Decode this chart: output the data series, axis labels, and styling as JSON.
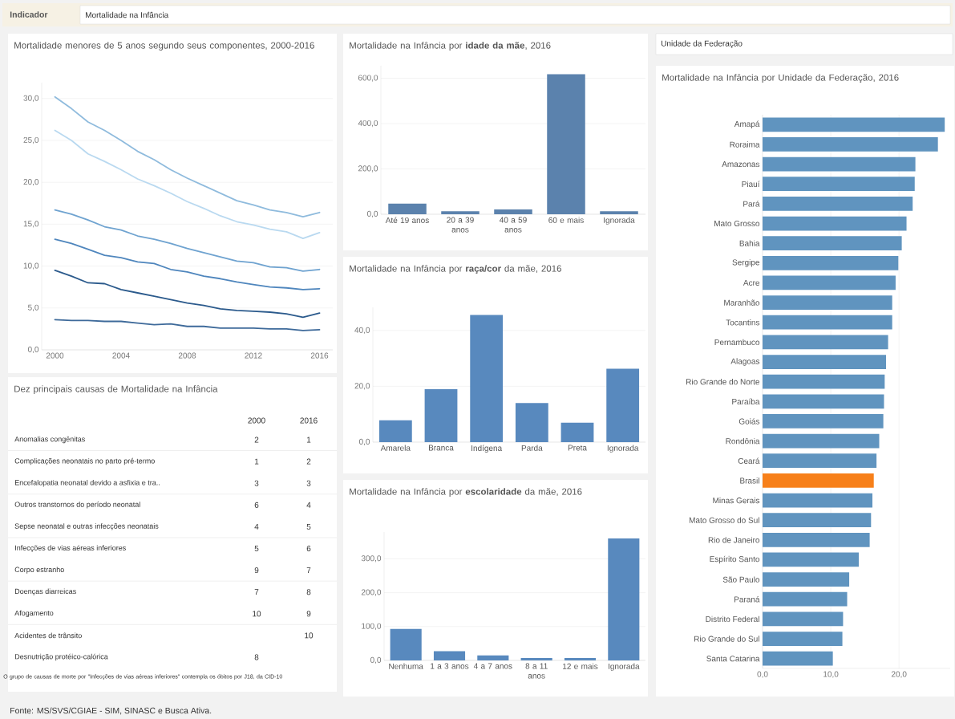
{
  "chart_data": [
    {
      "type": "other",
      "title": "Indicador",
      "annotations": [
        "Mortalidade na Infância",
        "Unidade da Federação",
        "Fonte: MS/SVS/CGIAE - SIM, SINASC e Busca Ativa."
      ]
    },
    {
      "type": "line",
      "title": "Mortalidade menores de 5 anos segundo seus componentes, 2000-2016",
      "x": [
        2000,
        2001,
        2002,
        2003,
        2004,
        2005,
        2006,
        2007,
        2008,
        2009,
        2010,
        2011,
        2012,
        2013,
        2014,
        2015,
        2016
      ],
      "series": [
        {
          "color": "#8fbbdd",
          "values": [
            30.2,
            28.8,
            27.2,
            26.2,
            25.0,
            23.7,
            22.7,
            21.5,
            20.5,
            19.6,
            18.7,
            17.8,
            17.3,
            16.7,
            16.4,
            15.9,
            16.4
          ]
        },
        {
          "color": "#b9d9f0",
          "values": [
            26.2,
            25.0,
            23.4,
            22.5,
            21.5,
            20.4,
            19.6,
            18.7,
            17.7,
            16.9,
            16.0,
            15.3,
            14.9,
            14.4,
            14.1,
            13.3,
            14.0
          ]
        },
        {
          "color": "#6fa3d0",
          "values": [
            16.7,
            16.2,
            15.5,
            14.7,
            14.3,
            13.6,
            13.2,
            12.7,
            12.1,
            11.6,
            11.1,
            10.6,
            10.4,
            9.9,
            9.8,
            9.4,
            9.6
          ]
        },
        {
          "color": "#4f86bd",
          "values": [
            13.2,
            12.7,
            12.0,
            11.3,
            11.0,
            10.5,
            10.3,
            9.6,
            9.3,
            8.8,
            8.5,
            8.1,
            7.8,
            7.5,
            7.4,
            7.2,
            7.3
          ]
        },
        {
          "color": "#2b5a8c",
          "values": [
            9.5,
            8.8,
            8.0,
            7.9,
            7.2,
            6.8,
            6.4,
            6.0,
            5.6,
            5.3,
            4.9,
            4.7,
            4.6,
            4.5,
            4.3,
            3.9,
            4.4
          ]
        },
        {
          "color": "#3e6a9a",
          "values": [
            3.6,
            3.5,
            3.5,
            3.4,
            3.4,
            3.2,
            3.0,
            3.1,
            2.8,
            2.8,
            2.6,
            2.6,
            2.6,
            2.5,
            2.5,
            2.3,
            2.4
          ]
        }
      ],
      "xlim": [
        1999.2,
        2016.8
      ],
      "ylim": [
        0,
        31.9
      ],
      "xticks": [
        2000,
        2004,
        2008,
        2012,
        2016
      ],
      "yticks": [
        {
          "value": 0,
          "label": "0,0"
        },
        {
          "value": 5,
          "label": "5,0"
        },
        {
          "value": 10,
          "label": "10,0"
        },
        {
          "value": 15,
          "label": "15,0"
        },
        {
          "value": 20,
          "label": "20,0"
        },
        {
          "value": 25,
          "label": "25,0"
        },
        {
          "value": 30,
          "label": "30,0"
        }
      ],
      "grid": "y"
    },
    {
      "type": "other",
      "title": "Dez principais causas de Mortalidade na Infância",
      "categories": [
        "Anomalias congênitas",
        "Complicações neonatais no parto pré-termo",
        "Encefalopatia neonatal devido a asfixia e tra..",
        "Outros transtornos do período neonatal",
        "Sepse neonatal e outras infecções neonatais",
        "Infecções de vias aéreas inferiores",
        "Corpo estranho",
        "Doenças diarreicas",
        "Afogamento",
        "Acidentes de trânsito",
        "Desnutrição protéico-calórica"
      ],
      "series": [
        {
          "name": "2000",
          "values": [
            2,
            1,
            3,
            6,
            4,
            5,
            9,
            7,
            10,
            null,
            8
          ],
          "value_labels": [
            "2",
            "1",
            "3",
            "6",
            "4",
            "5",
            "9",
            "7",
            "10",
            null,
            "8"
          ]
        },
        {
          "name": "2016",
          "values": [
            1,
            2,
            3,
            4,
            5,
            6,
            7,
            8,
            9,
            10,
            null
          ],
          "value_labels": [
            "1",
            "2",
            "3",
            "4",
            "5",
            "6",
            "7",
            "8",
            "9",
            "10",
            null
          ]
        }
      ],
      "annotations": [
        "O grupo de causas de morte por \"Infecções de vias aéreas inferiores\" contempla os óbitos por J18, da CID-10"
      ]
    },
    {
      "type": "bar",
      "title": "Mortalidade na Infância por **idade da mãe**, 2016",
      "categories": [
        "Até 19 anos",
        "20 a 39 anos",
        "40 a 59 anos",
        "60 e mais",
        "Ignorada"
      ],
      "values": [
        47,
        13,
        21,
        618,
        13
      ],
      "color": "#5b82ad",
      "ylim": [
        0,
        655
      ],
      "yticks": [
        {
          "value": 0,
          "label": "0,0"
        },
        {
          "value": 200,
          "label": "200,0"
        },
        {
          "value": 400,
          "label": "400,0"
        },
        {
          "value": 600,
          "label": "600,0"
        }
      ],
      "grid": "y"
    },
    {
      "type": "bar",
      "title": "Mortalidade na Infância por **raça/cor** da mãe, 2016",
      "categories": [
        "Amarela",
        "Branca",
        "Indígena",
        "Parda",
        "Preta",
        "Ignorada"
      ],
      "values": [
        7.8,
        19.0,
        45.6,
        14.0,
        7.0,
        26.3
      ],
      "color": "#5889be",
      "ylim": [
        0,
        48.3
      ],
      "yticks": [
        {
          "value": 0,
          "label": "0,0"
        },
        {
          "value": 20,
          "label": "20,0"
        },
        {
          "value": 40,
          "label": "40,0"
        }
      ],
      "grid": "y"
    },
    {
      "type": "bar",
      "title": "Mortalidade na Infância por **escolaridade** da mãe, 2016",
      "categories": [
        "Nenhuma",
        "1 a 3 anos",
        "4 a 7 anos",
        "8 a 11 anos",
        "12 e mais",
        "Ignorada"
      ],
      "values": [
        93,
        27,
        15,
        7,
        7,
        360
      ],
      "color": "#5889be",
      "ylim": [
        0,
        379
      ],
      "yticks": [
        {
          "value": 0,
          "label": "0,0"
        },
        {
          "value": 100,
          "label": "100,0"
        },
        {
          "value": 200,
          "label": "200,0"
        },
        {
          "value": 300,
          "label": "300,0"
        }
      ],
      "grid": "y"
    },
    {
      "type": "bar",
      "orientation": "horizontal",
      "title": "Mortalidade na Infância por Unidade da Federação, 2016",
      "categories": [
        "Amapá",
        "Roraima",
        "Amazonas",
        "Piauí",
        "Pará",
        "Mato Grosso",
        "Bahia",
        "Sergipe",
        "Acre",
        "Maranhão",
        "Tocantins",
        "Pernambuco",
        "Alagoas",
        "Rio Grande do Norte",
        "Paraíba",
        "Goiás",
        "Rondônia",
        "Ceará",
        "Brasil",
        "Minas Gerais",
        "Mato Grosso do Sul",
        "Rio de Janeiro",
        "Espírito Santo",
        "São Paulo",
        "Paraná",
        "Distrito Federal",
        "Rio Grande do Sul",
        "Santa Catarina"
      ],
      "values": [
        26.7,
        25.7,
        22.4,
        22.3,
        22.0,
        21.1,
        20.4,
        19.9,
        19.5,
        19.0,
        19.0,
        18.4,
        18.1,
        17.9,
        17.8,
        17.7,
        17.1,
        16.7,
        16.3,
        16.1,
        15.9,
        15.7,
        14.1,
        12.7,
        12.4,
        11.8,
        11.7,
        10.3
      ],
      "colors": [
        "#6094bf",
        "#6094bf",
        "#6094bf",
        "#6094bf",
        "#6094bf",
        "#6094bf",
        "#6094bf",
        "#6094bf",
        "#6094bf",
        "#6094bf",
        "#6094bf",
        "#6094bf",
        "#6094bf",
        "#6094bf",
        "#6094bf",
        "#6094bf",
        "#6094bf",
        "#6094bf",
        "#f7801a",
        "#6094bf",
        "#6094bf",
        "#6094bf",
        "#6094bf",
        "#6094bf",
        "#6094bf",
        "#6094bf",
        "#6094bf",
        "#6094bf"
      ],
      "xlim": [
        0,
        27.5
      ],
      "xticks": [
        {
          "value": 0,
          "label": "0,0"
        },
        {
          "value": 10,
          "label": "10,0"
        },
        {
          "value": 20,
          "label": "20,0"
        }
      ],
      "grid": "x"
    }
  ]
}
